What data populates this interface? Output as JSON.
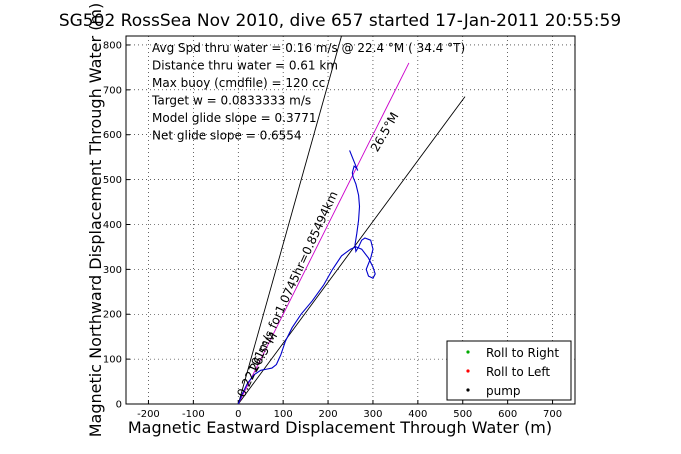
{
  "chart_data": {
    "type": "line",
    "title": "SG502 RossSea Nov 2010, dive 657 started 17-Jan-2011 20:55:59",
    "xlabel": "Magnetic Eastward Displacement Through Water (m)",
    "ylabel": "Magnetic Northward Displacement Through Water (m)",
    "xlim": [
      -250,
      750
    ],
    "ylim": [
      0,
      820
    ],
    "xticks": [
      -200,
      -100,
      0,
      100,
      200,
      300,
      400,
      500,
      600,
      700
    ],
    "yticks": [
      0,
      100,
      200,
      300,
      400,
      500,
      600,
      700,
      800
    ],
    "grid": true,
    "legend_position": "bottom-right",
    "info_lines": [
      "Avg Spd thru water =  0.16 m/s @  22.4  °M ( 34.4 °T)",
      "Distance thru water =  0.61 km",
      "Max buoy (cmdfile) = 120 cc",
      "Target w = 0.0833333 m/s",
      "Model glide slope = 0.3771",
      "Net glide slope = 0.6554"
    ],
    "annotations": [
      {
        "text": "0.22101m/s for1.0745hr=0.85494km",
        "x": 0,
        "y": 0,
        "angle_deg": 65.4
      },
      {
        "text": "26.5°M",
        "x": 40,
        "y": 70,
        "angle_deg": 60
      },
      {
        "text": "26.5°M",
        "x": 310,
        "y": 560,
        "angle_deg": 60
      }
    ],
    "legend": [
      {
        "label": "Roll to Right",
        "color": "#00aa00",
        "marker": "dot"
      },
      {
        "label": "Roll to Left",
        "color": "#ff0000",
        "marker": "dot"
      },
      {
        "label": "pump",
        "color": "#000000",
        "marker": "dot"
      }
    ],
    "series": [
      {
        "color": "#000000",
        "x": [
          0,
          230
        ],
        "y": [
          0,
          820
        ]
      },
      {
        "color": "#000000",
        "x": [
          0,
          505
        ],
        "y": [
          0,
          685
        ]
      },
      {
        "color": "#cc00cc",
        "x": [
          0,
          380
        ],
        "y": [
          0,
          760
        ]
      },
      {
        "color": "#0000cc",
        "x": [
          0,
          8,
          20,
          35,
          50,
          65,
          75,
          85,
          95,
          105,
          120,
          140,
          165,
          190,
          210,
          230,
          250,
          262,
          275,
          290,
          300,
          305,
          300,
          290,
          285,
          295,
          300,
          295,
          282,
          275,
          268,
          262,
          260,
          264,
          268,
          270,
          268,
          262,
          256,
          254,
          258,
          264,
          266,
          262,
          256,
          250,
          248
        ],
        "y": [
          0,
          20,
          45,
          65,
          75,
          78,
          80,
          88,
          110,
          140,
          170,
          200,
          230,
          265,
          300,
          330,
          345,
          350,
          345,
          325,
          305,
          290,
          280,
          285,
          300,
          325,
          345,
          365,
          370,
          365,
          350,
          340,
          355,
          380,
          410,
          440,
          465,
          490,
          505,
          515,
          530,
          525,
          520,
          530,
          545,
          560,
          565
        ]
      }
    ]
  }
}
